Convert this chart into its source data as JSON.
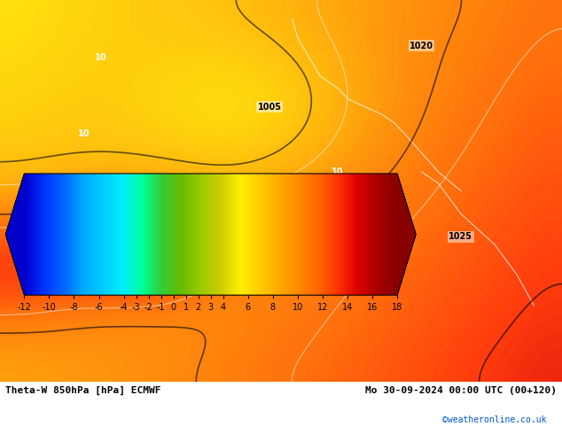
{
  "title_left": "Theta-W 850hPa [hPa] ECMWF",
  "title_right": "Mo 30-09-2024 00:00 UTC (00+120)",
  "watermark": "©weatheronline.co.uk",
  "colorbar_ticks": [
    -12,
    -10,
    -8,
    -6,
    -4,
    -3,
    -2,
    -1,
    0,
    1,
    2,
    3,
    4,
    6,
    8,
    10,
    12,
    14,
    16,
    18
  ],
  "colorbar_colors": [
    "#0000cd",
    "#0033ff",
    "#0066ff",
    "#00aaff",
    "#00ccff",
    "#00eeff",
    "#00ff99",
    "#33cc33",
    "#66bb00",
    "#99cc00",
    "#cccc00",
    "#ffee00",
    "#ffcc00",
    "#ffaa00",
    "#ff8800",
    "#ff6600",
    "#ff3300",
    "#dd0000",
    "#aa0000",
    "#880000"
  ],
  "bg_color": "#ffffff",
  "fig_width": 6.34,
  "fig_height": 4.9,
  "map_bg_orange": "#FFA500",
  "contour_color_black": "#000000",
  "contour_color_white": "#ffffff",
  "contour_color_gray": "#888888"
}
